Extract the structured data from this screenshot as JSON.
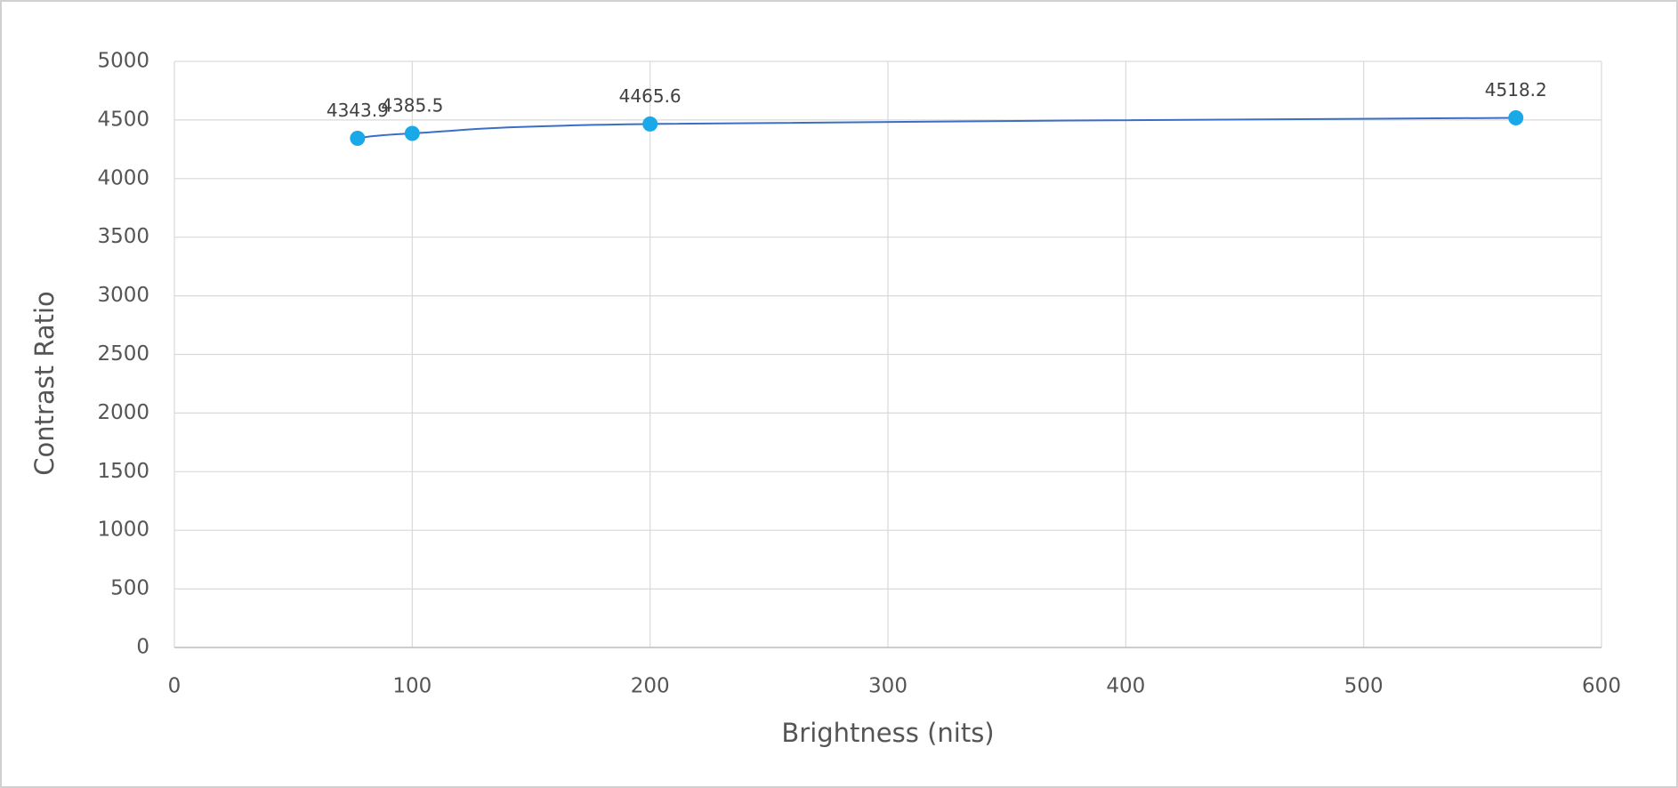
{
  "chart_data": {
    "type": "scatter",
    "smooth": true,
    "x_label": "Brightness (nits)",
    "y_label": "Contrast Ratio",
    "x": [
      77,
      100,
      200,
      564
    ],
    "series": [
      {
        "color": "#1aa9e8",
        "line_color": "#3b6fc6",
        "values": [
          4343.9,
          4385.5,
          4465.6,
          4518.2
        ]
      }
    ],
    "xlim": [
      0,
      600
    ],
    "xticks": [
      0,
      100,
      200,
      300,
      400,
      500,
      600
    ],
    "ylim": [
      0,
      5000
    ],
    "yticks": [
      0,
      500,
      1000,
      1500,
      2000,
      2500,
      3000,
      3500,
      4000,
      4500,
      5000
    ],
    "grid": true
  }
}
